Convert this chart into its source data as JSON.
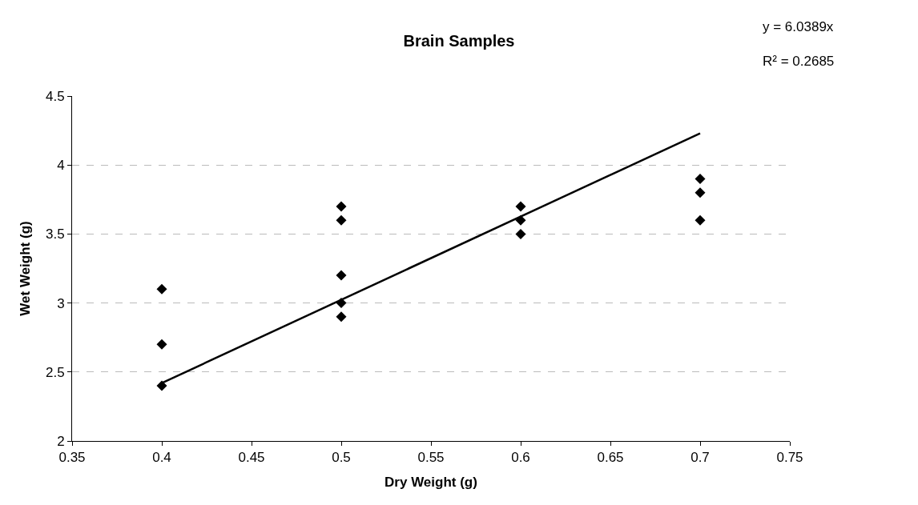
{
  "chart_data": {
    "type": "scatter",
    "title": "Brain Samples",
    "xlabel": "Dry Weight (g)",
    "ylabel": "Wet Weight (g)",
    "annotations": [
      "y = 6.0389x",
      "R² = 0.2685"
    ],
    "series": [
      {
        "color": "#000000",
        "marker": "diamond",
        "x": [
          0.4,
          0.4,
          0.4,
          0.5,
          0.5,
          0.5,
          0.5,
          0.5,
          0.6,
          0.6,
          0.6,
          0.7,
          0.7,
          0.7
        ],
        "values": [
          3.1,
          2.7,
          2.4,
          3.7,
          3.6,
          3.2,
          3.0,
          2.9,
          3.7,
          3.6,
          3.5,
          3.9,
          3.8,
          3.6
        ]
      },
      {
        "type": "line",
        "color": "#000000",
        "marker": "none",
        "x": [
          0.4,
          0.7
        ],
        "values": [
          2.42,
          4.23
        ]
      }
    ],
    "xlim": [
      0.35,
      0.75
    ],
    "xticks": [
      0.35,
      0.4,
      0.45,
      0.5,
      0.55,
      0.6,
      0.65,
      0.7,
      0.75
    ],
    "ylim": [
      2,
      4.5
    ],
    "yticks": [
      2,
      2.5,
      3,
      3.5,
      4,
      4.5
    ],
    "grid": "y"
  }
}
